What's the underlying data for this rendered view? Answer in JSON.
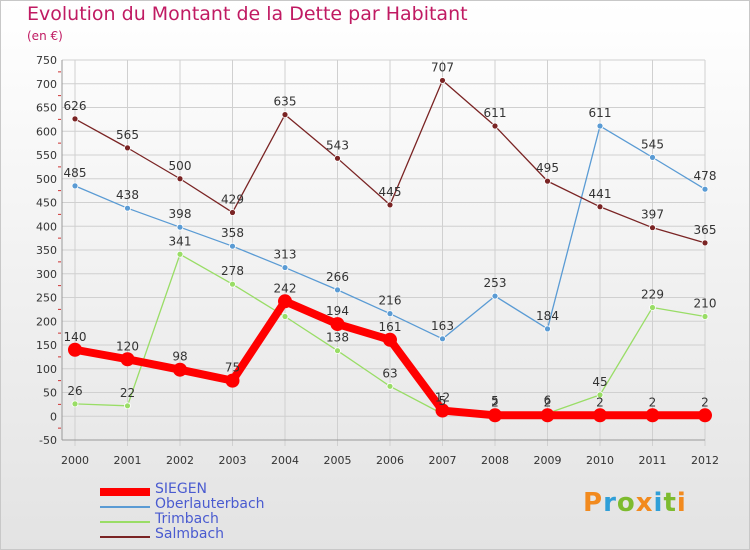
{
  "title": "Evolution du Montant de la Dette par Habitant",
  "subtitle": "(en €)",
  "logo": {
    "letters": [
      "P",
      "r",
      "o",
      "x",
      "i",
      "t",
      "i"
    ],
    "colors": [
      "#f28a1e",
      "#2f9fd8",
      "#7dbb2e",
      "#f28a1e",
      "#2f9fd8",
      "#7dbb2e",
      "#f28a1e"
    ]
  },
  "chart_data": {
    "type": "line",
    "x": [
      "2000",
      "2001",
      "2002",
      "2003",
      "2004",
      "2005",
      "2006",
      "2007",
      "2008",
      "2009",
      "2010",
      "2011",
      "2012"
    ],
    "ylim": [
      -50,
      750
    ],
    "yticks": [
      -50,
      0,
      50,
      100,
      150,
      200,
      250,
      300,
      350,
      400,
      450,
      500,
      550,
      600,
      650,
      700,
      750
    ],
    "grid": true,
    "legend_position": "bottom-left",
    "series": [
      {
        "name": "SIEGEN",
        "color": "#ff0000",
        "width": 8,
        "values": [
          140,
          120,
          98,
          75,
          242,
          194,
          161,
          12,
          2,
          2,
          2,
          2,
          2
        ],
        "labels": [
          "140",
          "120",
          "98",
          "75",
          "242",
          "194",
          "161",
          "12",
          "2",
          "2",
          "2",
          "2",
          "2"
        ]
      },
      {
        "name": "Oberlauterbach",
        "color": "#5a9bd4",
        "width": 1.3,
        "values": [
          485,
          438,
          398,
          358,
          313,
          266,
          216,
          163,
          253,
          184,
          611,
          545,
          478
        ],
        "labels": [
          "485",
          "438",
          "398",
          "358",
          "313",
          "266",
          "216",
          "163",
          "253",
          "184",
          "611",
          "545",
          "478"
        ]
      },
      {
        "name": "Trimbach",
        "color": "#99dd66",
        "width": 1.3,
        "values": [
          26,
          22,
          341,
          278,
          210,
          138,
          63,
          5,
          5,
          6,
          45,
          229,
          210
        ],
        "labels": [
          "26",
          "22",
          "341",
          "278",
          "",
          "138",
          "63",
          "5",
          "5",
          "6",
          "45",
          "229",
          "210"
        ]
      },
      {
        "name": "Salmbach",
        "color": "#7a2424",
        "width": 1.3,
        "values": [
          626,
          565,
          500,
          429,
          635,
          543,
          445,
          707,
          611,
          495,
          441,
          397,
          365
        ],
        "labels": [
          "626",
          "565",
          "500",
          "429",
          "635",
          "543",
          "445",
          "707",
          "611",
          "495",
          "441",
          "397",
          "365"
        ]
      }
    ]
  }
}
